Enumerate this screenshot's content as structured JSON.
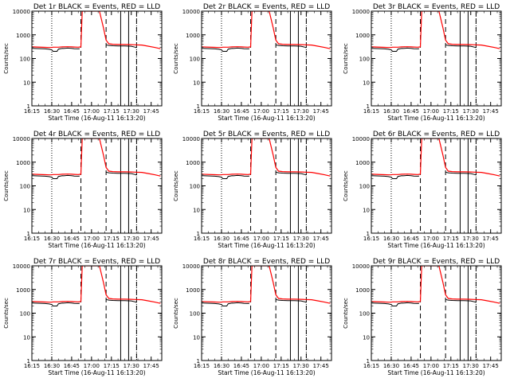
{
  "page": {
    "background": "#ffffff"
  },
  "style": {
    "events_color": "#000000",
    "lld_color": "#ff0000",
    "axis_color": "#000000"
  },
  "panel_titles": [
    "Det 1r BLACK = Events, RED = LLD",
    "Det 2r BLACK = Events, RED = LLD",
    "Det 3r BLACK = Events, RED = LLD",
    "Det 4r BLACK = Events, RED = LLD",
    "Det 5r BLACK = Events, RED = LLD",
    "Det 6r BLACK = Events, RED = LLD",
    "Det 7r BLACK = Events, RED = LLD",
    "Det 8r BLACK = Events, RED = LLD",
    "Det 9r BLACK = Events, RED = LLD"
  ],
  "chart_data": {
    "type": "line",
    "layout": "3x3 grid of panels",
    "xlabel": "Start Time (16-Aug-11 16:13:20)",
    "ylabel": "Counts/sec",
    "yscale": "log",
    "ylim": [
      1,
      10000
    ],
    "yticks": [
      1,
      10,
      100,
      1000,
      10000
    ],
    "ytick_labels": [
      "1",
      "10",
      "100",
      "1000",
      "10000"
    ],
    "xlim": [
      "16:15",
      "17:53"
    ],
    "xticks": [
      "16:15",
      "16:30",
      "16:45",
      "17:00",
      "17:15",
      "17:30",
      "17:45"
    ],
    "grid": false,
    "markers": {
      "dotted": [
        "16:30",
        "17:34"
      ],
      "dashed": [
        "16:52",
        "17:11",
        "17:34"
      ],
      "solid": [
        "17:22",
        "17:28"
      ]
    },
    "x": [
      "16:15",
      "16:25",
      "16:28",
      "16:30",
      "16:31",
      "16:34",
      "16:35",
      "16:38",
      "16:39",
      "16:42",
      "16:45",
      "16:47",
      "16:50",
      "16:51",
      "16:52",
      "16:53",
      "16:56",
      "17:00",
      "17:03",
      "17:06",
      "17:09",
      "17:11",
      "17:13",
      "17:16",
      "17:20",
      "17:25",
      "17:30",
      "17:33",
      "17:34",
      "17:38",
      "17:43",
      "17:48",
      "17:52"
    ],
    "series": [
      {
        "name": "Events",
        "color": "#000000",
        "values": [
          270,
          255,
          245,
          230,
          200,
          200,
          250,
          270,
          265,
          275,
          270,
          260,
          255,
          260,
          null,
          null,
          null,
          null,
          null,
          null,
          null,
          380,
          355,
          345,
          340,
          340,
          330,
          300,
          285,
          null,
          null,
          null,
          null
        ]
      },
      {
        "name": "LLD",
        "color": "#ff0000",
        "values": [
          310,
          295,
          290,
          290,
          300,
          300,
          300,
          310,
          310,
          315,
          310,
          305,
          300,
          305,
          310,
          10000,
          10000,
          10000,
          10000,
          10000,
          2000,
          600,
          420,
          400,
          390,
          390,
          385,
          380,
          375,
          370,
          330,
          290,
          260
        ]
      }
    ]
  }
}
